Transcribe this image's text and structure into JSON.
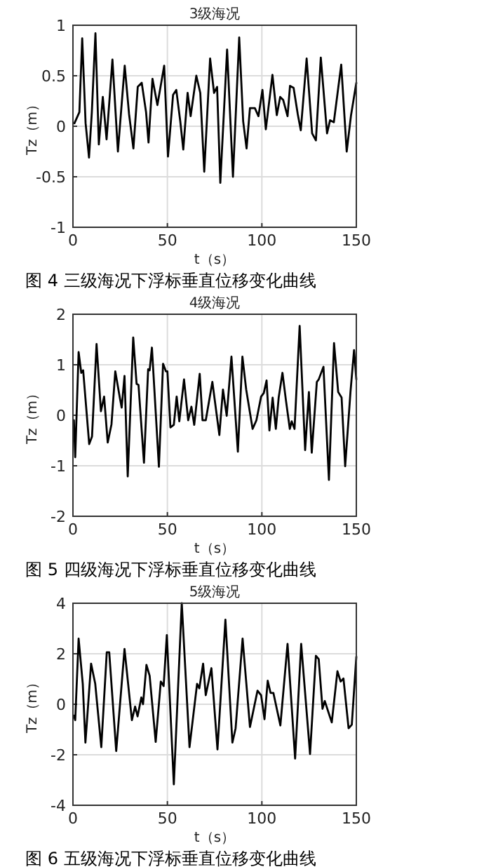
{
  "chart_data": [
    {
      "type": "line",
      "title": "3级海况",
      "xlabel": "t（s）",
      "ylabel": "Tz（m）",
      "xlim": [
        0,
        150
      ],
      "ylim": [
        -1,
        1
      ],
      "xticks": [
        0,
        50,
        100,
        150
      ],
      "yticks": [
        -1,
        -0.5,
        0,
        0.5,
        1
      ],
      "grid": true,
      "annotations": [
        "图 4 三级海况下浮标垂直位移变化曲线"
      ],
      "x": [
        0.8,
        3.4,
        4.9,
        6.7,
        8.5,
        10,
        11.9,
        13.7,
        15.8,
        17.8,
        20.9,
        23.8,
        27.4,
        29.7,
        32,
        34.3,
        36.4,
        38.7,
        40,
        42.1,
        44.7,
        48.3,
        50.3,
        53,
        54.7,
        56.8,
        58.4,
        60.7,
        62.3,
        65.3,
        67.4,
        69.5,
        72.6,
        74.7,
        76.3,
        78,
        81.6,
        84.7,
        88,
        90.1,
        91.9,
        93.7,
        96.3,
        98.2,
        100.3,
        102.1,
        105.6,
        107.9,
        109.7,
        111.3,
        113.6,
        114.9,
        116.8,
        119,
        120.6,
        123.7,
        126.6,
        128.6,
        131.2,
        134.5,
        136.1,
        138.1,
        142,
        144.9,
        147.2,
        150
      ],
      "series": [
        {
          "color": "#000000",
          "values": [
            0.03,
            0.14,
            0.87,
            0.03,
            -0.31,
            0.14,
            0.92,
            -0.18,
            0.29,
            -0.13,
            0.66,
            -0.25,
            0.6,
            0.12,
            -0.22,
            0.39,
            0.43,
            0.14,
            -0.16,
            0.47,
            0.21,
            0.6,
            -0.3,
            0.31,
            0.36,
            0.05,
            -0.23,
            0.33,
            0.1,
            0.5,
            0.33,
            -0.45,
            0.67,
            0.33,
            0.39,
            -0.56,
            0.76,
            -0.5,
            0.88,
            0.05,
            -0.22,
            0.18,
            0.18,
            0.1,
            0.36,
            -0.03,
            0.51,
            0.11,
            0.29,
            0.26,
            0.1,
            0.4,
            0.38,
            0.12,
            -0.04,
            0.67,
            -0.07,
            -0.14,
            0.68,
            -0.07,
            0.06,
            0.04,
            0.61,
            -0.25,
            0.11,
            0.43
          ]
        }
      ]
    },
    {
      "type": "line",
      "title": "4级海况",
      "xlabel": "t（s）",
      "ylabel": "Tz（m）",
      "xlim": [
        0,
        150
      ],
      "ylim": [
        -2,
        2
      ],
      "xticks": [
        0,
        50,
        100,
        150
      ],
      "yticks": [
        -2,
        -1,
        0,
        1,
        2
      ],
      "grid": true,
      "annotations": [
        "图 5 四级海况下浮标垂直位移变化曲线"
      ],
      "x": [
        0.5,
        1.2,
        3,
        4.4,
        5.4,
        8.6,
        10.1,
        12.5,
        14.8,
        16.5,
        18.4,
        20.4,
        22.4,
        24.8,
        25.8,
        27.3,
        29,
        31.9,
        33.7,
        34.7,
        37.6,
        39.8,
        40.6,
        41.8,
        45.5,
        47.7,
        49.2,
        50,
        51.6,
        53.4,
        54.9,
        56.3,
        58.8,
        61,
        62.7,
        64.2,
        67.1,
        68.6,
        70.3,
        73.8,
        77.5,
        79.4,
        81.4,
        83.9,
        87.3,
        89.7,
        91.7,
        95.1,
        97.1,
        99.6,
        101,
        102.5,
        104,
        105.7,
        107.4,
        108.9,
        110.9,
        112.8,
        114.8,
        115.8,
        117.3,
        120,
        122.9,
        124.9,
        126.4,
        129.1,
        130.1,
        132.6,
        135.5,
        138.2,
        140.4,
        142.2,
        144.1,
        146.9,
        148.8,
        150
      ],
      "series": [
        {
          "color": "#000000",
          "values": [
            -0.1,
            -0.83,
            1.25,
            0.84,
            0.89,
            -0.57,
            -0.42,
            1.41,
            0.08,
            0.37,
            -0.54,
            -0.18,
            0.87,
            0.35,
            0.15,
            0.78,
            -1.21,
            1.54,
            0.62,
            0.6,
            -0.94,
            0.91,
            0.89,
            1.34,
            -1.02,
            1.02,
            0.87,
            0.87,
            -0.24,
            -0.19,
            0.37,
            -0.12,
            0.71,
            -0.1,
            0.17,
            -0.19,
            0.82,
            -0.1,
            -0.1,
            0.66,
            -0.39,
            0.51,
            -0.01,
            1.16,
            -0.72,
            1.16,
            0.51,
            -0.27,
            -0.1,
            0.37,
            0.44,
            0.69,
            -0.3,
            0.35,
            -0.27,
            0.35,
            0.84,
            0.28,
            -0.27,
            -0.12,
            -0.27,
            1.77,
            -0.69,
            0.46,
            -0.74,
            0.66,
            0.71,
            0.96,
            -1.28,
            1.43,
            0.46,
            0.35,
            -1.01,
            0.46,
            1.29,
            0.71
          ]
        }
      ]
    },
    {
      "type": "line",
      "title": "5级海况",
      "xlabel": "t（s）",
      "ylabel": "Tz（m）",
      "xlim": [
        0,
        150
      ],
      "ylim": [
        -4,
        4
      ],
      "xticks": [
        0,
        50,
        100,
        150
      ],
      "yticks": [
        -4,
        -2,
        0,
        2,
        4
      ],
      "grid": true,
      "annotations": [
        "图 6 五级海况下浮标垂直位移变化曲线"
      ],
      "x": [
        0.5,
        1.2,
        3,
        5.2,
        6.6,
        9.6,
        11.8,
        15,
        17.9,
        19.2,
        22.9,
        27.3,
        31.2,
        32.9,
        34.2,
        36.2,
        37.1,
        38.9,
        40.6,
        43.8,
        46.5,
        48,
        49.7,
        53.4,
        57.6,
        61.7,
        65.7,
        66.9,
        68.9,
        70.3,
        73.3,
        76.5,
        80.7,
        84.4,
        86.1,
        89.8,
        93.7,
        97.7,
        99.6,
        101.4,
        103.1,
        104.6,
        106.1,
        109.8,
        113.6,
        117.6,
        120.8,
        125.5,
        128.6,
        130.1,
        132.1,
        133.3,
        137,
        140,
        141.7,
        143.2,
        145.9,
        147.6,
        150
      ],
      "series": [
        {
          "color": "#000000",
          "values": [
            -0.45,
            -0.63,
            2.6,
            0.81,
            -1.52,
            1.61,
            0.81,
            -1.7,
            2.06,
            2.06,
            -1.85,
            2.19,
            -0.63,
            -0.09,
            -0.48,
            0.27,
            0,
            1.56,
            1.13,
            -1.49,
            0.9,
            0.72,
            2.74,
            -3.17,
            4,
            -1.7,
            0.81,
            0.63,
            1.61,
            0.36,
            1.43,
            -1.79,
            3.35,
            -1.52,
            -0.95,
            2.6,
            -0.9,
            0.54,
            0.36,
            -0.59,
            0.93,
            0.45,
            0.45,
            -0.84,
            2.39,
            -2.15,
            2.39,
            -1.97,
            1.92,
            1.79,
            -0.18,
            0.13,
            -0.72,
            1.31,
            0.9,
            1.02,
            -0.95,
            -0.81,
            1.88
          ]
        }
      ]
    }
  ]
}
